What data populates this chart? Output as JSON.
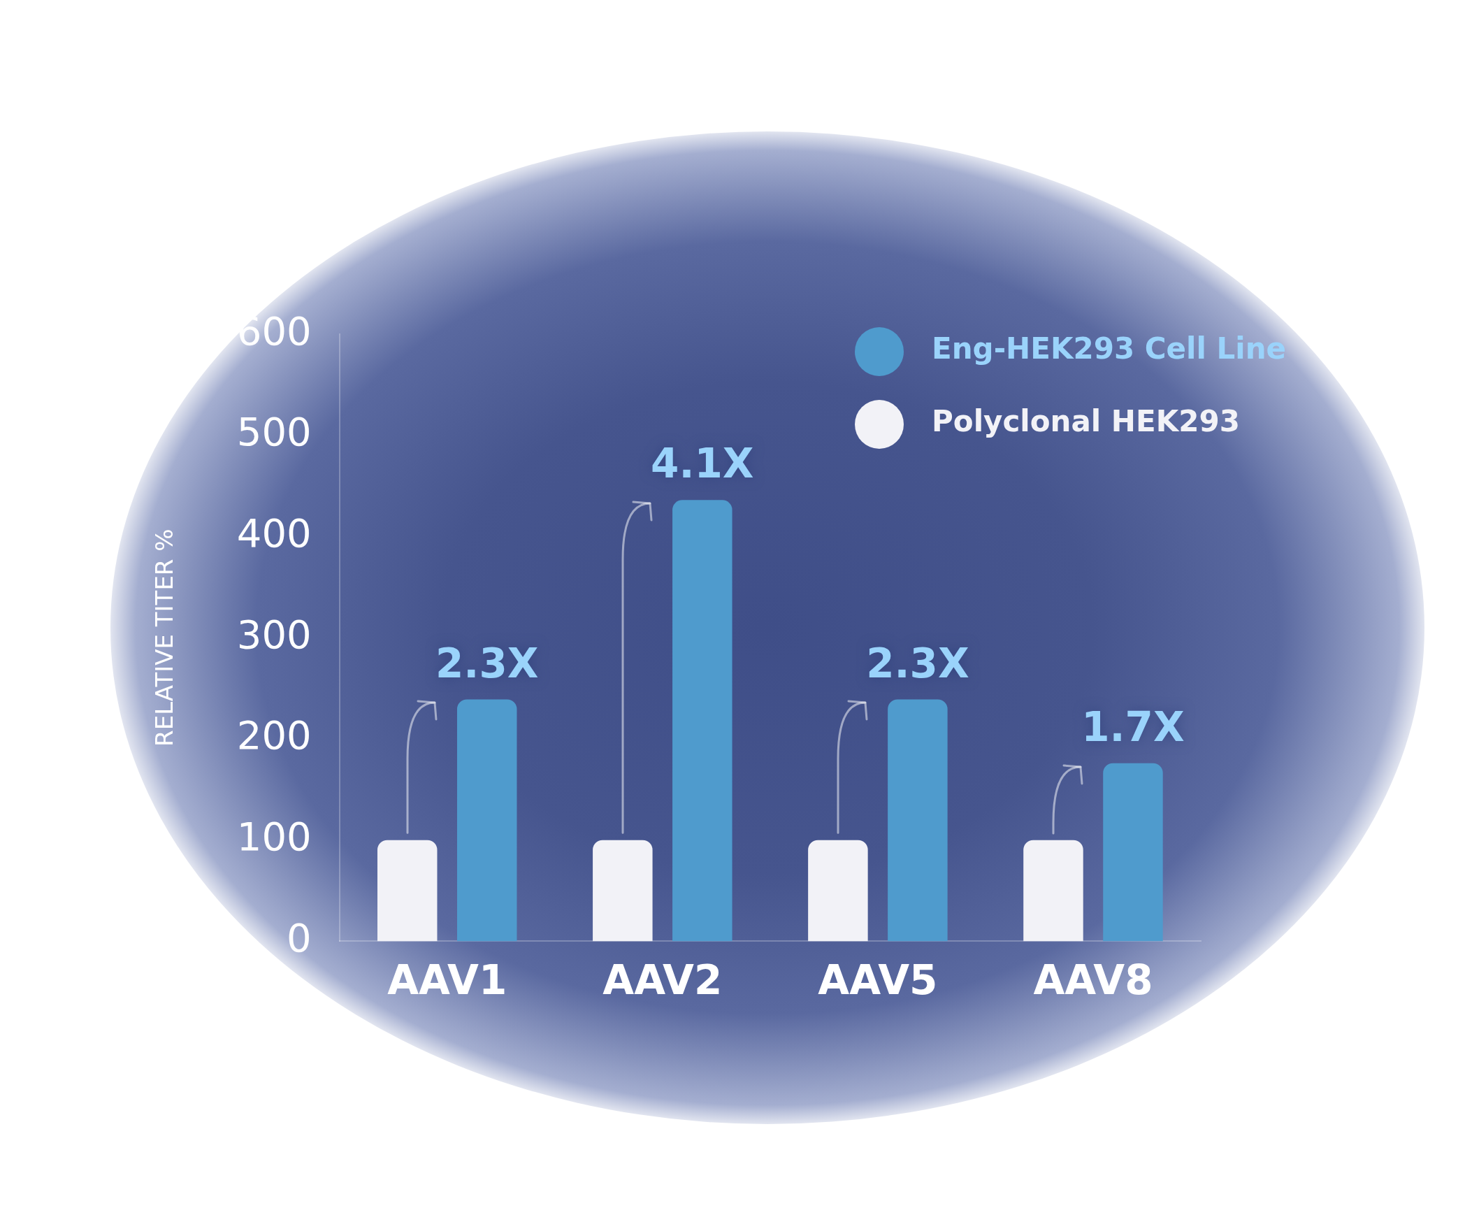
{
  "chart_data": {
    "type": "bar",
    "ylabel": "RELATIVE TITER %",
    "categories": [
      "AAV1",
      "AAV2",
      "AAV5",
      "AAV8"
    ],
    "series": [
      {
        "name": "Polyclonal HEK293",
        "color": "#f2f2f7",
        "values": [
          100,
          100,
          100,
          100
        ]
      },
      {
        "name": "Eng-HEK293 Cell Line",
        "color": "#4f9bcd",
        "values": [
          239,
          436,
          239,
          176
        ]
      }
    ],
    "ylim": [
      0,
      600
    ],
    "yticks": [
      0,
      100,
      200,
      300,
      400,
      500,
      600
    ],
    "grid": false,
    "legend": "top right",
    "annotations": [
      "2.3X",
      "4.1X",
      "2.3X",
      "1.7X"
    ]
  }
}
